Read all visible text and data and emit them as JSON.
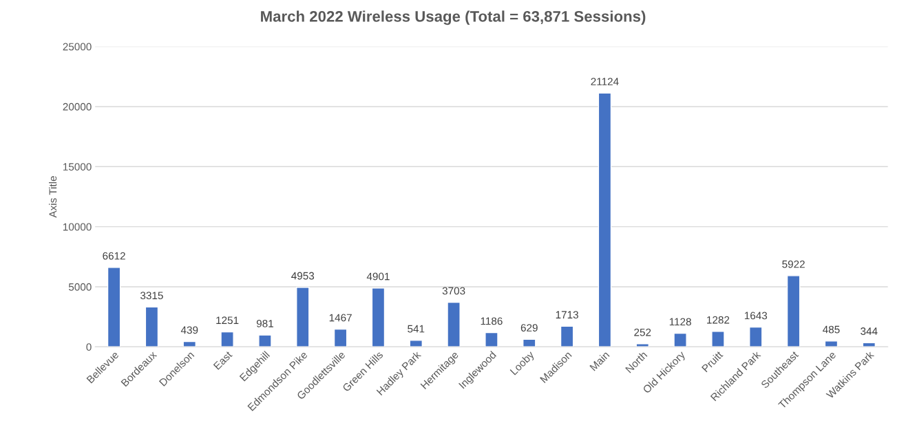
{
  "chart_data": {
    "type": "bar",
    "title": "March 2022 Wireless Usage (Total = 63,871 Sessions)",
    "ylabel": "Axis Title",
    "categories": [
      "Bellevue",
      "Bordeaux",
      "Donelson",
      "East",
      "Edgehill",
      "Edmondson Pike",
      "Goodlettsville",
      "Green Hills",
      "Hadley Park",
      "Hermitage",
      "Inglewood",
      "Looby",
      "Madison",
      "Main",
      "North",
      "Old Hickory",
      "Pruitt",
      "Richland Park",
      "Southeast",
      "Thompson Lane",
      "Watkins Park"
    ],
    "values": [
      6612,
      3315,
      439,
      1251,
      981,
      4953,
      1467,
      4901,
      541,
      3703,
      1186,
      629,
      1713,
      21124,
      252,
      1128,
      1282,
      1643,
      5922,
      485,
      344
    ],
    "color": "#4472c4",
    "ylim": [
      0,
      25000
    ],
    "yticks": [
      0,
      5000,
      10000,
      15000,
      20000,
      25000
    ],
    "grid": "y",
    "legend": false,
    "data_labels": true
  }
}
